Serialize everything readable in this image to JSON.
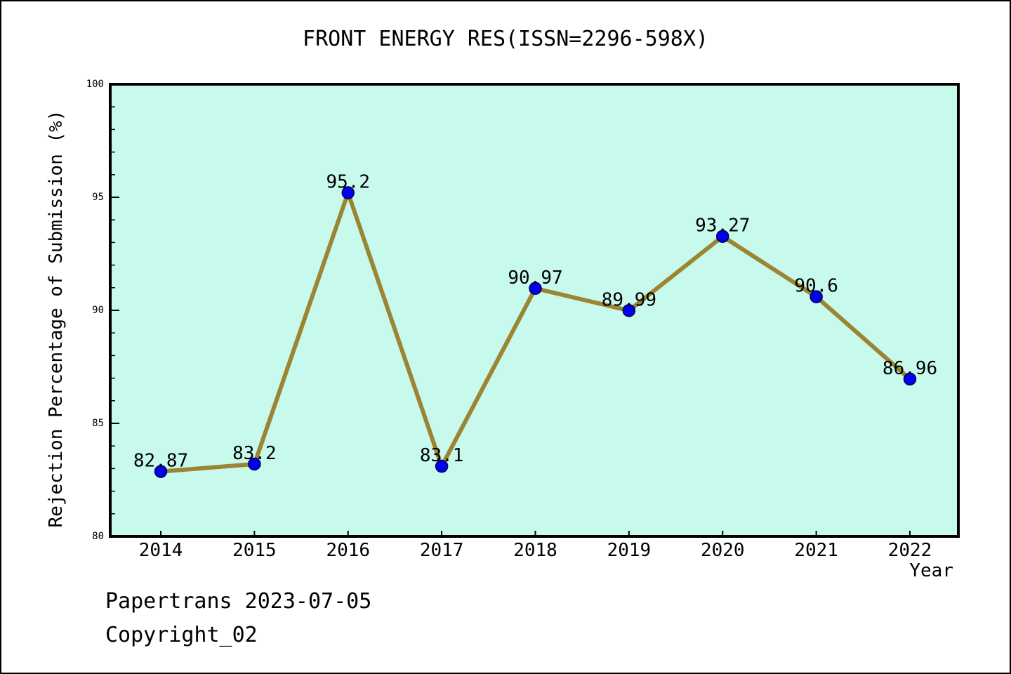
{
  "chart_data": {
    "type": "line",
    "title": "FRONT ENERGY RES(ISSN=2296-598X)",
    "xlabel": "Year",
    "ylabel": "Rejection Percentage of Submission (%)",
    "x": [
      2014,
      2015,
      2016,
      2017,
      2018,
      2019,
      2020,
      2021,
      2022
    ],
    "values": [
      82.87,
      83.2,
      95.2,
      83.1,
      90.97,
      89.99,
      93.27,
      90.6,
      86.96
    ],
    "point_labels": [
      "82.87",
      "83.2",
      "95.2",
      "83.1",
      "90.97",
      "89.99",
      "93.27",
      "90.6",
      "86.96"
    ],
    "series_name": "Rejection Percentage of Submission",
    "ylim": [
      80,
      100
    ],
    "y_major_ticks": [
      80,
      85,
      90,
      95,
      100
    ],
    "y_minor_step": 1,
    "grid": false,
    "legend_position": "none",
    "colors": {
      "plot_background": "#c7f9ec",
      "figure_background": "#ffffff",
      "line": "#9b8533",
      "marker_fill": "#0000ee",
      "marker_edge": "#000050",
      "axis": "#000000",
      "text": "#000000"
    }
  },
  "footer": {
    "line1": "Papertrans 2023-07-05",
    "line2": "Copyright_02"
  }
}
